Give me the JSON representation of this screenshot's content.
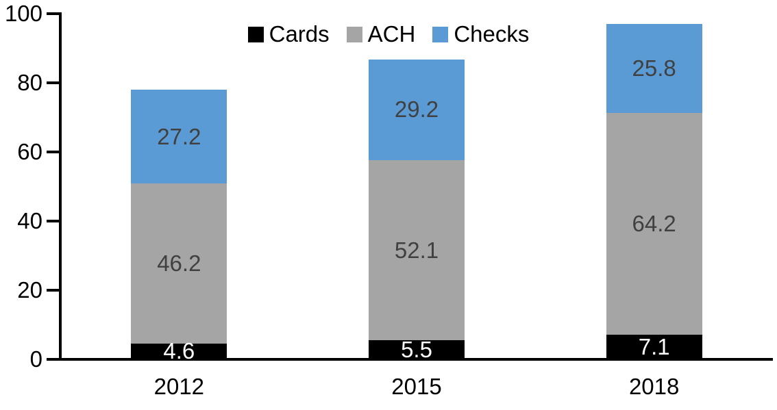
{
  "chart_data": {
    "type": "bar",
    "stacked": true,
    "title": "",
    "xlabel": "",
    "ylabel": "",
    "categories": [
      "2012",
      "2015",
      "2018"
    ],
    "series": [
      {
        "name": "Cards",
        "color": "#000000",
        "label_color": "#ffffff",
        "values": [
          4.6,
          5.5,
          7.1
        ]
      },
      {
        "name": "ACH",
        "color": "#a5a5a5",
        "label_color": "#404040",
        "values": [
          46.2,
          52.1,
          64.2
        ]
      },
      {
        "name": "Checks",
        "color": "#5b9bd5",
        "label_color": "#404040",
        "values": [
          27.2,
          29.2,
          25.8
        ]
      }
    ],
    "totals": [
      78.0,
      86.8,
      97.1
    ],
    "ylim": [
      0,
      100
    ],
    "yticks": [
      0,
      20,
      40,
      60,
      80,
      100
    ],
    "grid": false,
    "legend_position": "top-center",
    "legend_labels": [
      "Cards",
      "ACH",
      "Checks"
    ],
    "axis_color": "#000000",
    "background_color": "#ffffff"
  }
}
